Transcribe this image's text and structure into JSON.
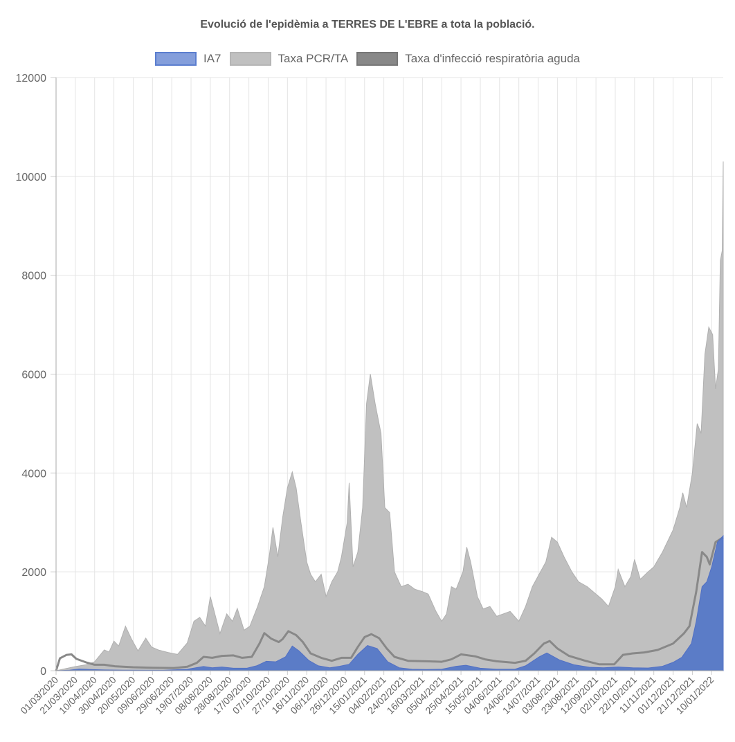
{
  "chart_data": {
    "type": "area",
    "title": "Evolució de l'epidèmia a TERRES DE L'EBRE a tota la població.",
    "xlabel": "",
    "ylabel": "",
    "ylim": [
      0,
      12000
    ],
    "yticks": [
      "0",
      "2000",
      "4000",
      "6000",
      "8000",
      "10000",
      "12000"
    ],
    "legend_position": "top",
    "grid": true,
    "x_start": "01/03/2020",
    "x_end": "22/01/2022",
    "x_tick_labels": [
      "01/03/2020",
      "21/03/2020",
      "10/04/2020",
      "30/04/2020",
      "20/05/2020",
      "09/06/2020",
      "29/06/2020",
      "19/07/2020",
      "08/08/2020",
      "28/08/2020",
      "17/09/2020",
      "07/10/2020",
      "27/10/2020",
      "16/11/2020",
      "06/12/2020",
      "26/12/2020",
      "15/01/2021",
      "04/02/2021",
      "24/02/2021",
      "16/03/2021",
      "05/04/2021",
      "25/04/2021",
      "15/05/2021",
      "04/06/2021",
      "24/06/2021",
      "14/07/2021",
      "03/08/2021",
      "23/08/2021",
      "12/09/2021",
      "02/10/2021",
      "22/10/2021",
      "11/11/2021",
      "01/12/2021",
      "21/12/2021",
      "10/01/2022"
    ],
    "series": [
      {
        "name": "IA7",
        "color": "#6a89d3",
        "fill": "#5b7ecf",
        "style": "filled-area",
        "points": [
          [
            "01/03/2020",
            0
          ],
          [
            "15/03/2020",
            10
          ],
          [
            "25/03/2020",
            35
          ],
          [
            "05/04/2020",
            25
          ],
          [
            "20/04/2020",
            15
          ],
          [
            "10/05/2020",
            10
          ],
          [
            "20/06/2020",
            8
          ],
          [
            "15/07/2020",
            30
          ],
          [
            "01/08/2020",
            85
          ],
          [
            "10/08/2020",
            60
          ],
          [
            "20/08/2020",
            75
          ],
          [
            "01/09/2020",
            50
          ],
          [
            "15/09/2020",
            50
          ],
          [
            "25/09/2020",
            100
          ],
          [
            "05/10/2020",
            190
          ],
          [
            "15/10/2020",
            180
          ],
          [
            "25/10/2020",
            280
          ],
          [
            "01/11/2020",
            500
          ],
          [
            "08/11/2020",
            400
          ],
          [
            "18/11/2020",
            210
          ],
          [
            "28/11/2020",
            100
          ],
          [
            "10/12/2020",
            60
          ],
          [
            "20/12/2020",
            90
          ],
          [
            "30/12/2020",
            130
          ],
          [
            "08/01/2021",
            330
          ],
          [
            "18/01/2021",
            510
          ],
          [
            "28/01/2021",
            450
          ],
          [
            "08/02/2021",
            180
          ],
          [
            "20/02/2021",
            60
          ],
          [
            "05/03/2021",
            30
          ],
          [
            "20/03/2021",
            25
          ],
          [
            "05/04/2021",
            30
          ],
          [
            "20/04/2021",
            90
          ],
          [
            "30/04/2021",
            110
          ],
          [
            "15/05/2021",
            50
          ],
          [
            "01/06/2021",
            30
          ],
          [
            "20/06/2021",
            30
          ],
          [
            "01/07/2021",
            100
          ],
          [
            "15/07/2021",
            280
          ],
          [
            "23/07/2021",
            360
          ],
          [
            "05/08/2021",
            220
          ],
          [
            "20/08/2021",
            120
          ],
          [
            "05/09/2021",
            70
          ],
          [
            "20/09/2021",
            60
          ],
          [
            "05/10/2021",
            75
          ],
          [
            "20/10/2021",
            60
          ],
          [
            "05/11/2021",
            55
          ],
          [
            "20/11/2021",
            90
          ],
          [
            "01/12/2021",
            170
          ],
          [
            "10/12/2021",
            270
          ],
          [
            "20/12/2021",
            550
          ],
          [
            "25/12/2021",
            1000
          ],
          [
            "31/12/2021",
            1700
          ],
          [
            "05/01/2022",
            1800
          ],
          [
            "10/01/2022",
            2100
          ],
          [
            "16/01/2022",
            2600
          ],
          [
            "22/01/2022",
            2730
          ]
        ]
      },
      {
        "name": "Taxa PCR/TA",
        "color": "#bdbdbd",
        "fill": "#c0c0c0",
        "style": "filled-area",
        "points": [
          [
            "01/03/2020",
            0
          ],
          [
            "20/03/2020",
            80
          ],
          [
            "01/04/2020",
            120
          ],
          [
            "10/04/2020",
            180
          ],
          [
            "20/04/2020",
            420
          ],
          [
            "25/04/2020",
            380
          ],
          [
            "30/04/2020",
            600
          ],
          [
            "05/05/2020",
            500
          ],
          [
            "12/05/2020",
            900
          ],
          [
            "18/05/2020",
            650
          ],
          [
            "25/05/2020",
            400
          ],
          [
            "02/06/2020",
            660
          ],
          [
            "08/06/2020",
            480
          ],
          [
            "15/06/2020",
            420
          ],
          [
            "25/06/2020",
            370
          ],
          [
            "05/07/2020",
            330
          ],
          [
            "15/07/2020",
            560
          ],
          [
            "22/07/2020",
            1000
          ],
          [
            "28/07/2020",
            1080
          ],
          [
            "03/08/2020",
            900
          ],
          [
            "08/08/2020",
            1500
          ],
          [
            "12/08/2020",
            1200
          ],
          [
            "18/08/2020",
            750
          ],
          [
            "25/08/2020",
            1150
          ],
          [
            "31/08/2020",
            1000
          ],
          [
            "05/09/2020",
            1260
          ],
          [
            "12/09/2020",
            820
          ],
          [
            "18/09/2020",
            900
          ],
          [
            "26/09/2020",
            1300
          ],
          [
            "03/10/2020",
            1700
          ],
          [
            "08/10/2020",
            2300
          ],
          [
            "12/10/2020",
            2900
          ],
          [
            "17/10/2020",
            2300
          ],
          [
            "22/10/2020",
            3100
          ],
          [
            "27/10/2020",
            3700
          ],
          [
            "01/11/2020",
            4020
          ],
          [
            "05/11/2020",
            3700
          ],
          [
            "10/11/2020",
            3000
          ],
          [
            "16/11/2020",
            2200
          ],
          [
            "20/11/2020",
            1950
          ],
          [
            "25/11/2020",
            1800
          ],
          [
            "01/12/2020",
            1950
          ],
          [
            "06/12/2020",
            1500
          ],
          [
            "12/12/2020",
            1800
          ],
          [
            "18/12/2020",
            2000
          ],
          [
            "22/12/2020",
            2300
          ],
          [
            "28/12/2020",
            3000
          ],
          [
            "30/12/2020",
            3800
          ],
          [
            "03/01/2021",
            2100
          ],
          [
            "08/01/2021",
            2400
          ],
          [
            "13/01/2021",
            3300
          ],
          [
            "17/01/2021",
            5400
          ],
          [
            "21/01/2021",
            6000
          ],
          [
            "26/01/2021",
            5400
          ],
          [
            "01/02/2021",
            4800
          ],
          [
            "05/02/2021",
            3300
          ],
          [
            "10/02/2021",
            3200
          ],
          [
            "15/02/2021",
            2000
          ],
          [
            "22/02/2021",
            1700
          ],
          [
            "01/03/2021",
            1750
          ],
          [
            "08/03/2021",
            1650
          ],
          [
            "16/03/2021",
            1600
          ],
          [
            "22/03/2021",
            1550
          ],
          [
            "30/03/2021",
            1200
          ],
          [
            "05/04/2021",
            1000
          ],
          [
            "10/04/2021",
            1150
          ],
          [
            "15/04/2021",
            1700
          ],
          [
            "20/04/2021",
            1650
          ],
          [
            "27/04/2021",
            2000
          ],
          [
            "01/05/2021",
            2500
          ],
          [
            "05/05/2021",
            2200
          ],
          [
            "12/05/2021",
            1500
          ],
          [
            "18/05/2021",
            1250
          ],
          [
            "25/05/2021",
            1300
          ],
          [
            "01/06/2021",
            1100
          ],
          [
            "08/06/2021",
            1150
          ],
          [
            "15/06/2021",
            1200
          ],
          [
            "24/06/2021",
            1000
          ],
          [
            "01/07/2021",
            1300
          ],
          [
            "08/07/2021",
            1700
          ],
          [
            "15/07/2021",
            1950
          ],
          [
            "22/07/2021",
            2200
          ],
          [
            "28/07/2021",
            2700
          ],
          [
            "03/08/2021",
            2600
          ],
          [
            "10/08/2021",
            2300
          ],
          [
            "18/08/2021",
            2000
          ],
          [
            "25/08/2021",
            1800
          ],
          [
            "03/09/2021",
            1700
          ],
          [
            "12/09/2021",
            1550
          ],
          [
            "18/09/2021",
            1450
          ],
          [
            "25/09/2021",
            1300
          ],
          [
            "02/10/2021",
            1700
          ],
          [
            "05/10/2021",
            2050
          ],
          [
            "12/10/2021",
            1700
          ],
          [
            "18/10/2021",
            1900
          ],
          [
            "22/10/2021",
            2250
          ],
          [
            "28/10/2021",
            1850
          ],
          [
            "05/11/2021",
            2000
          ],
          [
            "11/11/2021",
            2100
          ],
          [
            "20/11/2021",
            2400
          ],
          [
            "01/12/2021",
            2850
          ],
          [
            "08/12/2021",
            3300
          ],
          [
            "11/12/2021",
            3600
          ],
          [
            "15/12/2021",
            3300
          ],
          [
            "21/12/2021",
            4000
          ],
          [
            "26/12/2021",
            5000
          ],
          [
            "30/12/2021",
            4800
          ],
          [
            "03/01/2022",
            6400
          ],
          [
            "07/01/2022",
            6950
          ],
          [
            "11/01/2022",
            6800
          ],
          [
            "14/01/2022",
            5700
          ],
          [
            "17/01/2022",
            6100
          ],
          [
            "19/01/2022",
            8300
          ],
          [
            "21/01/2022",
            8500
          ],
          [
            "22/01/2022",
            10300
          ]
        ]
      },
      {
        "name": "Taxa d'infecció respiratòria aguda",
        "color": "#888888",
        "fill": "#888888",
        "style": "line",
        "points": [
          [
            "01/03/2020",
            0
          ],
          [
            "05/03/2020",
            250
          ],
          [
            "12/03/2020",
            320
          ],
          [
            "17/03/2020",
            330
          ],
          [
            "22/03/2020",
            240
          ],
          [
            "01/04/2020",
            170
          ],
          [
            "10/04/2020",
            120
          ],
          [
            "20/04/2020",
            120
          ],
          [
            "01/05/2020",
            90
          ],
          [
            "20/05/2020",
            70
          ],
          [
            "10/06/2020",
            60
          ],
          [
            "01/07/2020",
            55
          ],
          [
            "15/07/2020",
            80
          ],
          [
            "25/07/2020",
            160
          ],
          [
            "01/08/2020",
            280
          ],
          [
            "10/08/2020",
            260
          ],
          [
            "20/08/2020",
            300
          ],
          [
            "01/09/2020",
            310
          ],
          [
            "10/09/2020",
            260
          ],
          [
            "20/09/2020",
            280
          ],
          [
            "28/09/2020",
            550
          ],
          [
            "03/10/2020",
            760
          ],
          [
            "10/10/2020",
            650
          ],
          [
            "18/10/2020",
            580
          ],
          [
            "22/10/2020",
            640
          ],
          [
            "28/10/2020",
            800
          ],
          [
            "05/11/2020",
            720
          ],
          [
            "12/11/2020",
            580
          ],
          [
            "20/11/2020",
            350
          ],
          [
            "01/12/2020",
            260
          ],
          [
            "12/12/2020",
            200
          ],
          [
            "22/12/2020",
            260
          ],
          [
            "01/01/2021",
            260
          ],
          [
            "08/01/2021",
            480
          ],
          [
            "15/01/2021",
            680
          ],
          [
            "22/01/2021",
            740
          ],
          [
            "30/01/2021",
            660
          ],
          [
            "07/02/2021",
            450
          ],
          [
            "15/02/2021",
            280
          ],
          [
            "01/03/2021",
            200
          ],
          [
            "20/03/2021",
            190
          ],
          [
            "05/04/2021",
            180
          ],
          [
            "15/04/2021",
            230
          ],
          [
            "25/04/2021",
            330
          ],
          [
            "10/05/2021",
            290
          ],
          [
            "20/05/2021",
            230
          ],
          [
            "01/06/2021",
            190
          ],
          [
            "20/06/2021",
            160
          ],
          [
            "01/07/2021",
            200
          ],
          [
            "10/07/2021",
            350
          ],
          [
            "20/07/2021",
            550
          ],
          [
            "26/07/2021",
            600
          ],
          [
            "03/08/2021",
            450
          ],
          [
            "15/08/2021",
            300
          ],
          [
            "01/09/2021",
            200
          ],
          [
            "15/09/2021",
            130
          ],
          [
            "01/10/2021",
            130
          ],
          [
            "10/10/2021",
            320
          ],
          [
            "20/10/2021",
            350
          ],
          [
            "01/11/2021",
            370
          ],
          [
            "15/11/2021",
            420
          ],
          [
            "01/12/2021",
            550
          ],
          [
            "12/12/2021",
            750
          ],
          [
            "18/12/2021",
            900
          ],
          [
            "25/12/2021",
            1600
          ],
          [
            "31/12/2021",
            2400
          ],
          [
            "05/01/2022",
            2300
          ],
          [
            "08/01/2022",
            2150
          ],
          [
            "14/01/2022",
            2600
          ],
          [
            "22/01/2022",
            2700
          ]
        ]
      }
    ]
  }
}
